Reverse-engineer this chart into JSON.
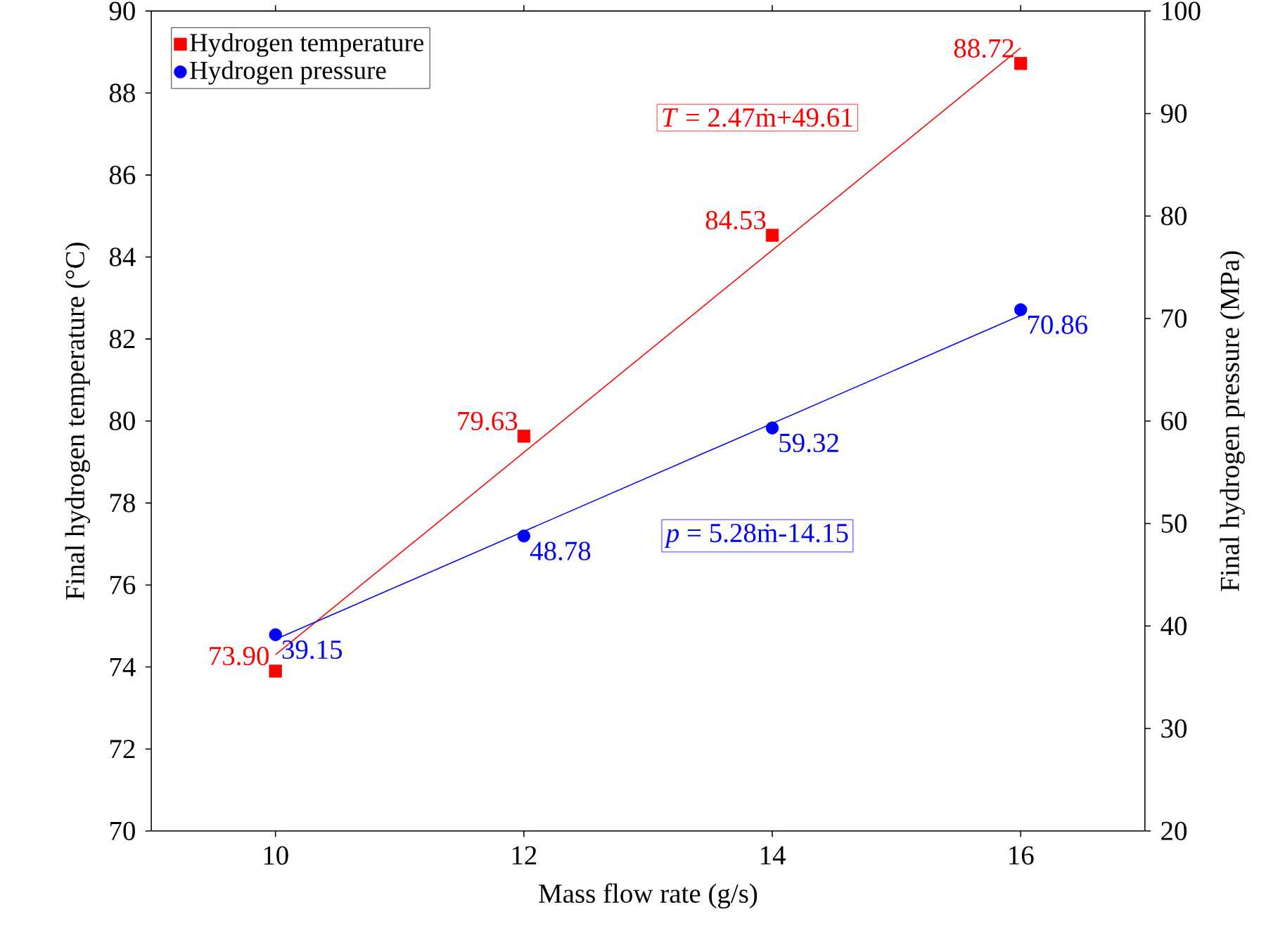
{
  "chart_data": {
    "type": "scatter",
    "xlabel": "Mass flow rate (g/s)",
    "ylabel": "Final hydrogen temperature (°C)",
    "y2label": "Final hydrogen pressure (MPa)",
    "xlim": [
      9,
      17
    ],
    "xticks": [
      10,
      12,
      14,
      16
    ],
    "ylim": [
      70,
      90
    ],
    "yticks": [
      70,
      72,
      74,
      76,
      78,
      80,
      82,
      84,
      86,
      88,
      90
    ],
    "y2lim": [
      20,
      100
    ],
    "y2ticks": [
      20,
      30,
      40,
      50,
      60,
      70,
      80,
      90,
      100
    ],
    "legend": "top left",
    "grid": false,
    "annotations": [
      "*T* = 2.47ṁ+49.61",
      "*p* = 5.28ṁ-14.15"
    ],
    "series": [
      {
        "name": "Hydrogen temperature",
        "marker": "square",
        "color": "#ff0000",
        "x": [
          10,
          12,
          14,
          16
        ],
        "values": [
          73.9,
          79.63,
          84.53,
          88.72
        ],
        "value_labels": [
          "73.90",
          "79.63",
          "84.53",
          "88.72"
        ]
      },
      {
        "name": "Hydrogen pressure",
        "marker": "circle",
        "axis": "y2",
        "color": "#0000ff",
        "x": [
          10,
          12,
          14,
          16
        ],
        "values": [
          39.15,
          48.78,
          59.32,
          70.86
        ],
        "value_labels": [
          "39.15",
          "48.78",
          "59.32",
          "70.86"
        ]
      },
      {
        "type": "line",
        "color": "#ff0000",
        "x": [
          10,
          16
        ],
        "values": [
          74.3,
          89.1
        ]
      },
      {
        "type": "line",
        "axis": "y2",
        "color": "#0000ff",
        "x": [
          10,
          16
        ],
        "values": [
          38.7,
          70.3
        ]
      }
    ]
  }
}
